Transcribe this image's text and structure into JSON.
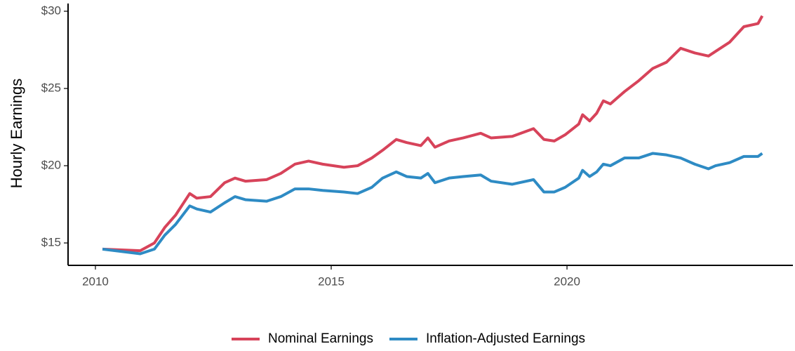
{
  "chart_data": {
    "type": "line",
    "y_label": "Hourly Earnings",
    "x": [
      2010.15,
      2010.95,
      2011.25,
      2011.47,
      2011.7,
      2012.0,
      2012.15,
      2012.44,
      2012.74,
      2012.96,
      2013.18,
      2013.63,
      2013.93,
      2014.23,
      2014.52,
      2014.82,
      2015.27,
      2015.56,
      2015.86,
      2016.09,
      2016.38,
      2016.6,
      2016.9,
      2017.05,
      2017.2,
      2017.5,
      2017.8,
      2018.17,
      2018.39,
      2018.84,
      2019.29,
      2019.51,
      2019.73,
      2019.96,
      2020.25,
      2020.33,
      2020.48,
      2020.63,
      2020.77,
      2020.92,
      2021.22,
      2021.52,
      2021.82,
      2022.11,
      2022.41,
      2022.71,
      2023.0,
      2023.15,
      2023.45,
      2023.75,
      2024.05,
      2024.14
    ],
    "series": [
      {
        "name": "Nominal Earnings",
        "color": "#d7435a",
        "values": [
          14.6,
          14.5,
          15.0,
          16.0,
          16.8,
          18.2,
          17.9,
          18.0,
          18.9,
          19.2,
          19.0,
          19.1,
          19.5,
          20.1,
          20.3,
          20.1,
          19.9,
          20.0,
          20.5,
          21.0,
          21.7,
          21.5,
          21.3,
          21.8,
          21.2,
          21.6,
          21.8,
          22.1,
          21.8,
          21.9,
          22.4,
          21.7,
          21.6,
          22.0,
          22.7,
          23.3,
          22.9,
          23.4,
          24.2,
          24.0,
          24.8,
          25.5,
          26.3,
          26.7,
          27.6,
          27.3,
          27.1,
          27.4,
          28.0,
          29.0,
          29.2,
          29.7
        ]
      },
      {
        "name": "Inflation-Adjusted Earnings",
        "color": "#2e8bc4",
        "values": [
          14.6,
          14.3,
          14.6,
          15.5,
          16.2,
          17.4,
          17.2,
          17.0,
          17.6,
          18.0,
          17.8,
          17.7,
          18.0,
          18.5,
          18.5,
          18.4,
          18.3,
          18.2,
          18.6,
          19.2,
          19.6,
          19.3,
          19.2,
          19.5,
          18.9,
          19.2,
          19.3,
          19.4,
          19.0,
          18.8,
          19.1,
          18.3,
          18.3,
          18.6,
          19.2,
          19.7,
          19.3,
          19.6,
          20.1,
          20.0,
          20.5,
          20.5,
          20.8,
          20.7,
          20.5,
          20.1,
          19.8,
          20.0,
          20.2,
          20.6,
          20.6,
          20.8
        ]
      }
    ],
    "xlim": [
      2009.42,
      2024.79
    ],
    "xticks": [
      2010,
      2015,
      2020
    ],
    "ylim": [
      13.55,
      30.5
    ],
    "yticks": [
      {
        "value": 15,
        "label": "$15"
      },
      {
        "value": 20,
        "label": "$20"
      },
      {
        "value": 25,
        "label": "$25"
      },
      {
        "value": 30,
        "label": "$30"
      }
    ],
    "grid": false,
    "legend": "bottom"
  }
}
